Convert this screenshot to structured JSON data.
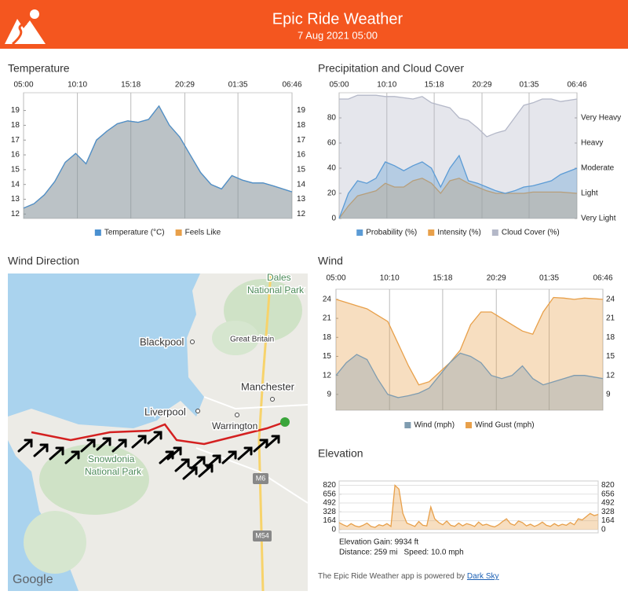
{
  "header": {
    "title": "Epic Ride Weather",
    "subtitle": "7 Aug 2021 05:00"
  },
  "chart_data": [
    {
      "type": "area",
      "title": "Temperature",
      "x": [
        0,
        1,
        2,
        3,
        4,
        5,
        6,
        7,
        8,
        9,
        10,
        11,
        12,
        13,
        14,
        15,
        16,
        17,
        18,
        19,
        20,
        21,
        22,
        23,
        24,
        25.77
      ],
      "xlim": [
        0,
        25.77
      ],
      "xticks": [
        {
          "value": 0,
          "label": "05:00"
        },
        {
          "value": 5.17,
          "label": "10:10"
        },
        {
          "value": 10.3,
          "label": "15:18"
        },
        {
          "value": 15.48,
          "label": "20:29"
        },
        {
          "value": 20.58,
          "label": "01:35"
        },
        {
          "value": 25.77,
          "label": "06:46"
        }
      ],
      "ylim": [
        11.7,
        20.2
      ],
      "yticks": [
        12,
        13,
        14,
        15,
        16,
        17,
        18,
        19
      ],
      "y_right": true,
      "grid": true,
      "series": [
        {
          "name": "Temperature (°C)",
          "color": "#4a90d0",
          "values": [
            12.4,
            12.7,
            13.3,
            14.2,
            15.5,
            16.1,
            15.4,
            17.0,
            17.6,
            18.1,
            18.3,
            18.2,
            18.4,
            19.3,
            18.0,
            17.2,
            16.0,
            14.8,
            14.0,
            13.7,
            14.6,
            14.3,
            14.1,
            14.1,
            13.9,
            13.5
          ]
        },
        {
          "name": "Feels Like",
          "color": "#e8a04a",
          "values": [
            12.4,
            12.7,
            13.3,
            14.2,
            15.5,
            16.1,
            15.4,
            17.0,
            17.6,
            18.1,
            18.3,
            18.2,
            18.4,
            19.3,
            18.0,
            17.2,
            16.0,
            14.8,
            14.0,
            13.7,
            14.6,
            14.3,
            14.1,
            14.1,
            13.9,
            13.5
          ]
        }
      ]
    },
    {
      "type": "area",
      "title": "Precipitation and Cloud Cover",
      "x": [
        0,
        1,
        2,
        3,
        4,
        5,
        6,
        7,
        8,
        9,
        10,
        11,
        12,
        13,
        14,
        15,
        16,
        17,
        18,
        19,
        20,
        21,
        22,
        23,
        24,
        25.77
      ],
      "xlim": [
        0,
        25.77
      ],
      "xticks": [
        {
          "value": 0,
          "label": "05:00"
        },
        {
          "value": 5.17,
          "label": "10:10"
        },
        {
          "value": 10.3,
          "label": "15:18"
        },
        {
          "value": 15.48,
          "label": "20:29"
        },
        {
          "value": 20.58,
          "label": "01:35"
        },
        {
          "value": 25.77,
          "label": "06:46"
        }
      ],
      "ylim": [
        0,
        100
      ],
      "yticks": [
        0,
        20,
        40,
        60,
        80
      ],
      "y2lim": [
        0,
        100
      ],
      "y2ticks": [
        {
          "value": 0,
          "label": "Very Light"
        },
        {
          "value": 20,
          "label": "Light"
        },
        {
          "value": 40,
          "label": "Moderate"
        },
        {
          "value": 60,
          "label": "Heavy"
        },
        {
          "value": 80,
          "label": "Very Heavy"
        }
      ],
      "grid": true,
      "series": [
        {
          "name": "Probability (%)",
          "color": "#5b9bd5",
          "values": [
            0,
            20,
            30,
            28,
            32,
            45,
            42,
            38,
            42,
            45,
            40,
            25,
            40,
            50,
            30,
            28,
            25,
            22,
            20,
            22,
            25,
            26,
            28,
            30,
            35,
            40
          ]
        },
        {
          "name": "Intensity (%)",
          "color": "#e8a04a",
          "values": [
            0,
            10,
            18,
            20,
            22,
            28,
            25,
            25,
            30,
            32,
            28,
            20,
            30,
            32,
            28,
            25,
            22,
            20,
            20,
            20,
            20,
            21,
            21,
            21,
            21,
            20
          ]
        },
        {
          "name": "Cloud Cover (%)",
          "color": "#b4b8c8",
          "values": [
            95,
            95,
            98,
            98,
            98,
            97,
            97,
            96,
            95,
            97,
            92,
            90,
            88,
            80,
            78,
            72,
            65,
            68,
            70,
            80,
            90,
            92,
            95,
            95,
            93,
            95
          ]
        }
      ]
    },
    {
      "type": "area",
      "title": "Wind",
      "x": [
        0,
        1,
        2,
        3,
        4,
        5,
        6,
        7,
        8,
        9,
        10,
        11,
        12,
        13,
        14,
        15,
        16,
        17,
        18,
        19,
        20,
        21,
        22,
        23,
        24,
        25.77
      ],
      "xlim": [
        0,
        25.77
      ],
      "xticks": [
        {
          "value": 0,
          "label": "05:00"
        },
        {
          "value": 5.17,
          "label": "10:10"
        },
        {
          "value": 10.3,
          "label": "15:18"
        },
        {
          "value": 15.48,
          "label": "20:29"
        },
        {
          "value": 20.58,
          "label": "01:35"
        },
        {
          "value": 25.77,
          "label": "06:46"
        }
      ],
      "ylim": [
        6.5,
        25.6
      ],
      "yticks": [
        9,
        12,
        15,
        18,
        21,
        24
      ],
      "y_right": true,
      "grid": true,
      "series": [
        {
          "name": "Wind (mph)",
          "color": "#7f9cb0",
          "values": [
            12,
            14,
            15.3,
            14.5,
            11.5,
            9,
            8.5,
            8.8,
            9.2,
            10,
            12,
            14,
            15.5,
            15,
            14,
            12,
            11.5,
            12,
            13.5,
            11.5,
            10.5,
            11,
            11.5,
            12,
            12,
            11.5
          ]
        },
        {
          "name": "Wind Gust (mph)",
          "color": "#e8a04a",
          "values": [
            24,
            23.5,
            23,
            22.5,
            21.5,
            20.5,
            17,
            13.5,
            10.5,
            11,
            12.5,
            14,
            16,
            20,
            22,
            22,
            21,
            20,
            19,
            18.5,
            22,
            24.3,
            24.2,
            24,
            24.2,
            24
          ]
        }
      ]
    },
    {
      "type": "area",
      "title": "Elevation",
      "ylim": [
        -60,
        900
      ],
      "yticks": [
        0,
        164,
        328,
        492,
        656,
        820
      ],
      "y_right": true,
      "series": [
        {
          "color": "#e8a04a",
          "values": [
            130,
            90,
            60,
            110,
            70,
            50,
            80,
            120,
            60,
            40,
            90,
            70,
            110,
            60,
            820,
            750,
            300,
            120,
            90,
            60,
            150,
            80,
            70,
            420,
            200,
            130,
            90,
            160,
            80,
            60,
            120,
            70,
            110,
            90,
            60,
            140,
            80,
            100,
            70,
            50,
            90,
            150,
            200,
            110,
            80,
            160,
            130,
            70,
            100,
            60,
            90,
            140,
            80,
            60,
            110,
            70,
            100,
            80,
            130,
            90,
            200,
            180,
            240,
            300,
            260,
            280
          ]
        }
      ],
      "annotations": [
        "Elevation Gain: 9934 ft",
        "Distance: 259 mi",
        "Speed: 10.0 mph"
      ]
    }
  ],
  "map": {
    "title": "Wind Direction",
    "labels": [
      "Dales",
      "National Park",
      "Blackpool",
      "Great Britain",
      "Manchester",
      "Liverpool",
      "Warrington",
      "Snowdonia",
      "National Park",
      "M6",
      "M54",
      "Google"
    ]
  },
  "footer": {
    "text": "The Epic Ride Weather app is powered by",
    "link": "Dark Sky"
  }
}
